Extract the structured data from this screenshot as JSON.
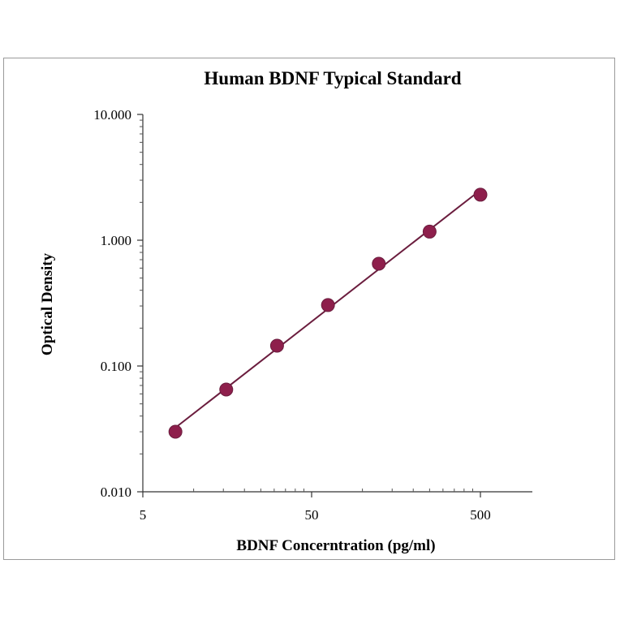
{
  "chart_data": {
    "type": "scatter",
    "title": "Human  BDNF Typical  Standard",
    "xlabel": "BDNF  Concerntration  (pg/ml)",
    "ylabel": "Optical  Density",
    "x_scale": "log",
    "y_scale": "log",
    "xlim": [
      5,
      1000
    ],
    "ylim": [
      0.01,
      10
    ],
    "x_ticks": [
      5,
      50,
      500
    ],
    "x_tick_labels": [
      "5",
      "50",
      "500"
    ],
    "y_ticks": [
      0.01,
      0.1,
      1,
      10
    ],
    "y_tick_labels": [
      "0.010",
      "0.100",
      "1.000",
      "10.000"
    ],
    "grid": false,
    "legend": "none",
    "series": [
      {
        "x": [
          7.8,
          15.6,
          31.2,
          62.5,
          125,
          250,
          500
        ],
        "y": [
          0.03,
          0.065,
          0.145,
          0.305,
          0.65,
          1.17,
          2.3
        ],
        "color": "#8e1f4c",
        "line_color": "#6b1d3e",
        "fit_line": true
      }
    ]
  }
}
